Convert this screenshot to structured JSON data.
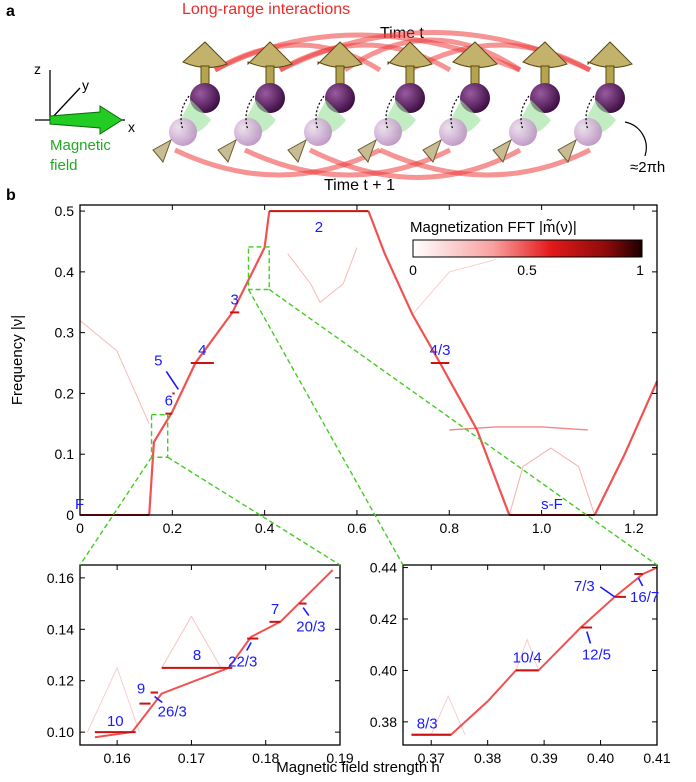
{
  "panel_a": {
    "letter": "a",
    "long_range_label": "Long-range interactions",
    "time_t_label": "Time t",
    "time_t1_label": "Time t + 1",
    "rotation_label": "≈2πh",
    "field_label_line1": "Magnetic",
    "field_label_line2": "field",
    "axis_x": "x",
    "axis_y": "y",
    "axis_z": "z",
    "colors": {
      "interaction": "#ee2a2a",
      "field": "#22bb22",
      "spin_dark": "#4a1050",
      "spin_light": "#c9a3cf",
      "arrow": "#b4a460"
    }
  },
  "panel_b": {
    "letter": "b",
    "colorbar_title": "Magnetization FFT |m̃(ν)|",
    "colorbar_ticks": [
      "0",
      "0.5",
      "1"
    ],
    "colors": {
      "fft": "#dd1111",
      "annotation": "#1a1aff",
      "zoom_box": "#44cc22"
    }
  },
  "chart_data": [
    {
      "type": "heatmap",
      "xlabel": "",
      "ylabel": "Frequency |ν|",
      "xlim": [
        0,
        1.25
      ],
      "ylim": [
        0,
        0.51
      ],
      "xticks": [
        "0",
        "0.2",
        "0.4",
        "0.6",
        "0.8",
        "1.0",
        "1.2"
      ],
      "yticks": [
        "0",
        "0.1",
        "0.2",
        "0.3",
        "0.4",
        "0.5"
      ],
      "plateaus": [
        {
          "label": "F",
          "h": [
            0,
            0.15
          ],
          "nu": 0
        },
        {
          "label": "6",
          "h": [
            0.185,
            0.2
          ],
          "nu": 0.1667
        },
        {
          "label": "5",
          "h": [
            0.2,
            0.2
          ],
          "nu": 0.2
        },
        {
          "label": "4",
          "h": [
            0.24,
            0.29
          ],
          "nu": 0.25
        },
        {
          "label": "3",
          "h": [
            0.325,
            0.345
          ],
          "nu": 0.3333
        },
        {
          "label": "2",
          "h": [
            0.41,
            0.625
          ],
          "nu": 0.5
        },
        {
          "label": "4/3",
          "h": [
            0.76,
            0.8
          ],
          "nu": 0.25
        },
        {
          "label": "s-F",
          "h": [
            0.93,
            1.115
          ],
          "nu": 0
        }
      ]
    },
    {
      "type": "heatmap",
      "xlabel": "",
      "ylabel": "",
      "xlim": [
        0.155,
        0.19
      ],
      "ylim": [
        0.095,
        0.165
      ],
      "xticks": [
        "0.16",
        "0.17",
        "0.18",
        "0.19"
      ],
      "yticks": [
        "0.10",
        "0.12",
        "0.14",
        "0.16"
      ],
      "plateaus": [
        {
          "label": "10",
          "h": [
            0.157,
            0.1625
          ],
          "nu": 0.1
        },
        {
          "label": "9",
          "h": [
            0.163,
            0.1645
          ],
          "nu": 0.1111
        },
        {
          "label": "26/3",
          "h": [
            0.1645,
            0.1655
          ],
          "nu": 0.1154
        },
        {
          "label": "8",
          "h": [
            0.166,
            0.1755
          ],
          "nu": 0.125
        },
        {
          "label": "22/3",
          "h": [
            0.1775,
            0.179
          ],
          "nu": 0.1364
        },
        {
          "label": "7",
          "h": [
            0.1805,
            0.182
          ],
          "nu": 0.1429
        },
        {
          "label": "20/3",
          "h": [
            0.1845,
            0.1855
          ],
          "nu": 0.15
        }
      ]
    },
    {
      "type": "heatmap",
      "xlabel": "Magnetic field strength h",
      "ylabel": "",
      "xlim": [
        0.365,
        0.41
      ],
      "ylim": [
        0.371,
        0.441
      ],
      "xticks": [
        "0.37",
        "0.38",
        "0.39",
        "0.40",
        "0.41"
      ],
      "yticks": [
        "0.38",
        "0.40",
        "0.42",
        "0.44"
      ],
      "plateaus": [
        {
          "label": "8/3",
          "h": [
            0.3665,
            0.3735
          ],
          "nu": 0.375
        },
        {
          "label": "10/4",
          "h": [
            0.385,
            0.389
          ],
          "nu": 0.4
        },
        {
          "label": "12/5",
          "h": [
            0.3965,
            0.3985
          ],
          "nu": 0.4167
        },
        {
          "label": "7/3",
          "h": [
            0.4025,
            0.4045
          ],
          "nu": 0.4286
        },
        {
          "label": "16/7",
          "h": [
            0.406,
            0.4075
          ],
          "nu": 0.4375
        }
      ]
    }
  ]
}
